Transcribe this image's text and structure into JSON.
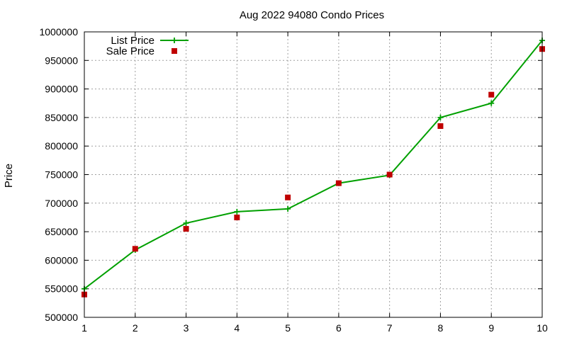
{
  "chart_data": {
    "type": "line",
    "title": "Aug 2022 94080 Condo Prices",
    "xlabel": "",
    "ylabel": "Price",
    "xlim": [
      1,
      10
    ],
    "ylim": [
      500000,
      1000000
    ],
    "xticks": [
      "1",
      "2",
      "3",
      "4",
      "5",
      "6",
      "7",
      "8",
      "9",
      "10"
    ],
    "yticks": [
      "500000",
      "550000",
      "600000",
      "650000",
      "700000",
      "750000",
      "800000",
      "850000",
      "900000",
      "950000",
      "1000000"
    ],
    "grid": true,
    "legend_position": "top-left",
    "x": [
      1,
      2,
      3,
      4,
      5,
      6,
      7,
      8,
      9,
      10
    ],
    "series": [
      {
        "name": "List Price",
        "style": "linespoints",
        "marker": "plus",
        "color": "#00a000",
        "values": [
          550000,
          618000,
          665000,
          685000,
          690000,
          735000,
          749000,
          850000,
          875000,
          985000
        ]
      },
      {
        "name": "Sale Price",
        "style": "points",
        "marker": "square",
        "color": "#c00000",
        "values": [
          540000,
          620000,
          655000,
          675000,
          710000,
          735000,
          750000,
          835000,
          890000,
          970000
        ]
      }
    ]
  }
}
